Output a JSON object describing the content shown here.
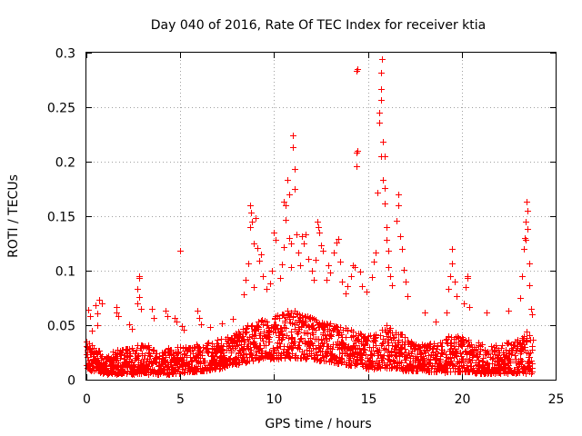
{
  "chart_data": {
    "type": "scatter",
    "title": "Day 040 of 2016, Rate Of TEC Index for receiver ktia",
    "xlabel": "GPS time / hours",
    "ylabel": "ROTI / TECUs",
    "xlim": [
      0,
      25
    ],
    "ylim": [
      0,
      0.3
    ],
    "xticks": [
      0,
      5,
      10,
      15,
      20,
      25
    ],
    "yticks": [
      0,
      0.05,
      0.1,
      0.15,
      0.2,
      0.25,
      0.3
    ],
    "xtick_labels": [
      "0",
      "5",
      "10",
      "15",
      "20",
      "25"
    ],
    "ytick_labels": [
      "0",
      "0.05",
      "0.1",
      "0.15",
      "0.2",
      "0.25",
      "0.3"
    ],
    "grid": true,
    "marker": "+",
    "color": "#ff0000",
    "series": [
      {
        "name": "ROTI",
        "points": [
          [
            0.1,
            0.064
          ],
          [
            0.2,
            0.058
          ],
          [
            0.3,
            0.045
          ],
          [
            0.5,
            0.068
          ],
          [
            0.6,
            0.05
          ],
          [
            0.6,
            0.061
          ],
          [
            0.7,
            0.073
          ],
          [
            0.8,
            0.07
          ],
          [
            1.6,
            0.067
          ],
          [
            1.6,
            0.062
          ],
          [
            1.7,
            0.058
          ],
          [
            2.3,
            0.051
          ],
          [
            2.4,
            0.047
          ],
          [
            2.7,
            0.07
          ],
          [
            2.8,
            0.095
          ],
          [
            2.8,
            0.093
          ],
          [
            2.7,
            0.083
          ],
          [
            2.8,
            0.076
          ],
          [
            2.9,
            0.065
          ],
          [
            3.5,
            0.065
          ],
          [
            3.6,
            0.057
          ],
          [
            4.2,
            0.063
          ],
          [
            4.3,
            0.058
          ],
          [
            4.7,
            0.057
          ],
          [
            4.8,
            0.053
          ],
          [
            5.0,
            0.118
          ],
          [
            5.1,
            0.049
          ],
          [
            5.2,
            0.046
          ],
          [
            5.9,
            0.063
          ],
          [
            6.0,
            0.057
          ],
          [
            6.1,
            0.051
          ],
          [
            6.6,
            0.048
          ],
          [
            7.2,
            0.052
          ],
          [
            7.8,
            0.056
          ],
          [
            8.4,
            0.078
          ],
          [
            8.5,
            0.092
          ],
          [
            8.6,
            0.107
          ],
          [
            8.7,
            0.14
          ],
          [
            8.7,
            0.16
          ],
          [
            8.75,
            0.153
          ],
          [
            8.8,
            0.145
          ],
          [
            8.9,
            0.125
          ],
          [
            8.9,
            0.085
          ],
          [
            9.0,
            0.148
          ],
          [
            9.1,
            0.121
          ],
          [
            9.2,
            0.109
          ],
          [
            9.3,
            0.115
          ],
          [
            9.4,
            0.095
          ],
          [
            9.6,
            0.083
          ],
          [
            9.8,
            0.088
          ],
          [
            9.9,
            0.1
          ],
          [
            10.0,
            0.135
          ],
          [
            10.1,
            0.128
          ],
          [
            10.3,
            0.093
          ],
          [
            10.4,
            0.106
          ],
          [
            10.5,
            0.122
          ],
          [
            10.5,
            0.163
          ],
          [
            10.6,
            0.16
          ],
          [
            10.6,
            0.147
          ],
          [
            10.7,
            0.183
          ],
          [
            10.8,
            0.17
          ],
          [
            10.8,
            0.13
          ],
          [
            10.9,
            0.125
          ],
          [
            10.9,
            0.103
          ],
          [
            11.0,
            0.224
          ],
          [
            11.0,
            0.213
          ],
          [
            11.1,
            0.193
          ],
          [
            11.1,
            0.175
          ],
          [
            11.2,
            0.133
          ],
          [
            11.3,
            0.117
          ],
          [
            11.4,
            0.105
          ],
          [
            11.5,
            0.132
          ],
          [
            11.6,
            0.125
          ],
          [
            11.7,
            0.133
          ],
          [
            11.8,
            0.111
          ],
          [
            12.0,
            0.1
          ],
          [
            12.1,
            0.092
          ],
          [
            12.2,
            0.11
          ],
          [
            12.3,
            0.145
          ],
          [
            12.35,
            0.14
          ],
          [
            12.4,
            0.135
          ],
          [
            12.5,
            0.123
          ],
          [
            12.6,
            0.118
          ],
          [
            12.8,
            0.092
          ],
          [
            12.9,
            0.105
          ],
          [
            13.0,
            0.098
          ],
          [
            13.2,
            0.117
          ],
          [
            13.3,
            0.126
          ],
          [
            13.4,
            0.129
          ],
          [
            13.5,
            0.108
          ],
          [
            13.6,
            0.09
          ],
          [
            13.8,
            0.079
          ],
          [
            13.9,
            0.086
          ],
          [
            14.1,
            0.095
          ],
          [
            14.2,
            0.105
          ],
          [
            14.3,
            0.103
          ],
          [
            14.4,
            0.196
          ],
          [
            14.4,
            0.208
          ],
          [
            14.45,
            0.21
          ],
          [
            14.4,
            0.283
          ],
          [
            14.45,
            0.285
          ],
          [
            14.6,
            0.099
          ],
          [
            14.7,
            0.086
          ],
          [
            14.9,
            0.081
          ],
          [
            15.2,
            0.094
          ],
          [
            15.3,
            0.108
          ],
          [
            15.4,
            0.117
          ],
          [
            15.5,
            0.172
          ],
          [
            15.6,
            0.236
          ],
          [
            15.6,
            0.245
          ],
          [
            15.7,
            0.257
          ],
          [
            15.7,
            0.267
          ],
          [
            15.7,
            0.282
          ],
          [
            15.75,
            0.294
          ],
          [
            15.7,
            0.205
          ],
          [
            15.8,
            0.218
          ],
          [
            15.9,
            0.205
          ],
          [
            15.8,
            0.183
          ],
          [
            15.9,
            0.176
          ],
          [
            15.9,
            0.162
          ],
          [
            16.0,
            0.14
          ],
          [
            16.0,
            0.128
          ],
          [
            16.1,
            0.118
          ],
          [
            16.1,
            0.103
          ],
          [
            16.2,
            0.095
          ],
          [
            16.3,
            0.087
          ],
          [
            16.5,
            0.146
          ],
          [
            16.6,
            0.16
          ],
          [
            16.6,
            0.17
          ],
          [
            16.7,
            0.132
          ],
          [
            16.8,
            0.12
          ],
          [
            16.9,
            0.101
          ],
          [
            17.0,
            0.09
          ],
          [
            17.1,
            0.077
          ],
          [
            18.0,
            0.062
          ],
          [
            18.6,
            0.053
          ],
          [
            19.2,
            0.062
          ],
          [
            19.3,
            0.083
          ],
          [
            19.4,
            0.095
          ],
          [
            19.5,
            0.107
          ],
          [
            19.5,
            0.12
          ],
          [
            19.6,
            0.09
          ],
          [
            19.7,
            0.077
          ],
          [
            20.1,
            0.07
          ],
          [
            20.2,
            0.085
          ],
          [
            20.3,
            0.095
          ],
          [
            20.3,
            0.093
          ],
          [
            20.4,
            0.067
          ],
          [
            21.3,
            0.062
          ],
          [
            22.5,
            0.063
          ],
          [
            23.1,
            0.075
          ],
          [
            23.2,
            0.095
          ],
          [
            23.3,
            0.12
          ],
          [
            23.35,
            0.13
          ],
          [
            23.4,
            0.128
          ],
          [
            23.4,
            0.145
          ],
          [
            23.45,
            0.163
          ],
          [
            23.5,
            0.155
          ],
          [
            23.5,
            0.138
          ],
          [
            23.6,
            0.107
          ],
          [
            23.6,
            0.087
          ],
          [
            23.7,
            0.065
          ],
          [
            23.75,
            0.06
          ]
        ]
      }
    ],
    "dense_band": {
      "description": "bulk of ROTI values forming a continuous band along the bottom of the plot",
      "x": [
        0.0,
        0.5,
        1.0,
        1.5,
        2.0,
        2.5,
        3.0,
        3.5,
        4.0,
        4.5,
        5.0,
        5.5,
        6.0,
        6.5,
        7.0,
        7.5,
        8.0,
        8.5,
        9.0,
        9.5,
        10.0,
        10.5,
        11.0,
        11.5,
        12.0,
        12.5,
        13.0,
        13.5,
        14.0,
        14.5,
        15.0,
        15.5,
        16.0,
        16.5,
        17.0,
        17.5,
        18.0,
        18.5,
        19.0,
        19.5,
        20.0,
        20.5,
        21.0,
        21.5,
        22.0,
        22.5,
        23.0,
        23.5,
        23.8
      ],
      "upper": [
        0.035,
        0.032,
        0.02,
        0.028,
        0.03,
        0.03,
        0.034,
        0.032,
        0.026,
        0.03,
        0.033,
        0.03,
        0.035,
        0.034,
        0.037,
        0.04,
        0.045,
        0.05,
        0.055,
        0.055,
        0.058,
        0.062,
        0.065,
        0.06,
        0.058,
        0.055,
        0.052,
        0.05,
        0.048,
        0.045,
        0.04,
        0.045,
        0.05,
        0.045,
        0.04,
        0.035,
        0.033,
        0.035,
        0.04,
        0.042,
        0.04,
        0.035,
        0.035,
        0.032,
        0.033,
        0.035,
        0.04,
        0.045,
        0.038
      ],
      "lower": [
        0.008,
        0.008,
        0.005,
        0.005,
        0.006,
        0.005,
        0.006,
        0.005,
        0.005,
        0.005,
        0.006,
        0.007,
        0.008,
        0.008,
        0.01,
        0.012,
        0.014,
        0.016,
        0.018,
        0.02,
        0.018,
        0.02,
        0.02,
        0.018,
        0.018,
        0.017,
        0.016,
        0.015,
        0.013,
        0.012,
        0.01,
        0.01,
        0.01,
        0.01,
        0.008,
        0.008,
        0.007,
        0.007,
        0.007,
        0.007,
        0.007,
        0.006,
        0.006,
        0.006,
        0.006,
        0.006,
        0.006,
        0.006,
        0.006
      ]
    }
  }
}
